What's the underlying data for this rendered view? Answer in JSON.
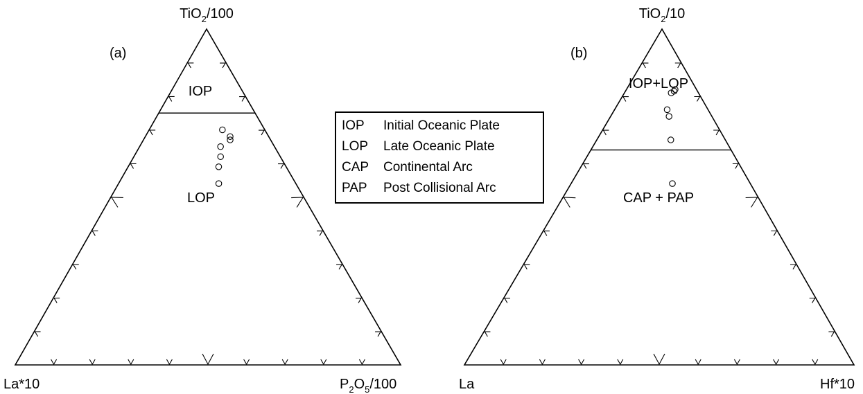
{
  "chart_data": [
    {
      "type": "ternary",
      "panel_label": "(a)",
      "apex_top": {
        "text": "TiO",
        "sub": "2",
        "suffix": "/100"
      },
      "apex_left": {
        "text": "La*10"
      },
      "apex_right": {
        "text": "P",
        "sub": "2",
        "mid": "O",
        "sub2": "5",
        "suffix": "/100"
      },
      "field_labels": [
        "IOP",
        "LOP"
      ],
      "boundary_top_fraction": 0.75,
      "points": [
        {
          "top": 0.7,
          "left": 0.11,
          "right": 0.19
        },
        {
          "top": 0.68,
          "left": 0.1,
          "right": 0.22
        },
        {
          "top": 0.67,
          "left": 0.105,
          "right": 0.225
        },
        {
          "top": 0.65,
          "left": 0.14,
          "right": 0.21
        },
        {
          "top": 0.62,
          "left": 0.155,
          "right": 0.225
        },
        {
          "top": 0.59,
          "left": 0.175,
          "right": 0.235
        },
        {
          "top": 0.54,
          "left": 0.2,
          "right": 0.26
        }
      ]
    },
    {
      "type": "ternary",
      "panel_label": "(b)",
      "apex_top": {
        "text": "TiO",
        "sub": "2",
        "suffix": "/10"
      },
      "apex_left": {
        "text": "La"
      },
      "apex_right": {
        "text": "Hf*10"
      },
      "field_labels": [
        "IOP+LOP",
        "CAP + PAP"
      ],
      "boundary_top_fraction": 0.64,
      "points": [
        {
          "top": 0.82,
          "left": 0.055,
          "right": 0.125
        },
        {
          "top": 0.815,
          "left": 0.06,
          "right": 0.125
        },
        {
          "top": 0.81,
          "left": 0.07,
          "right": 0.12
        },
        {
          "top": 0.76,
          "left": 0.105,
          "right": 0.135
        },
        {
          "top": 0.74,
          "left": 0.11,
          "right": 0.15
        },
        {
          "top": 0.67,
          "left": 0.14,
          "right": 0.19
        },
        {
          "top": 0.54,
          "left": 0.2,
          "right": 0.26
        }
      ]
    }
  ],
  "legend": [
    {
      "abbr": "IOP",
      "text": "Initial Oceanic Plate"
    },
    {
      "abbr": "LOP",
      "text": "Late Oceanic Plate"
    },
    {
      "abbr": "CAP",
      "text": "Continental Arc"
    },
    {
      "abbr": "PAP",
      "text": "Post Collisional Arc"
    }
  ]
}
